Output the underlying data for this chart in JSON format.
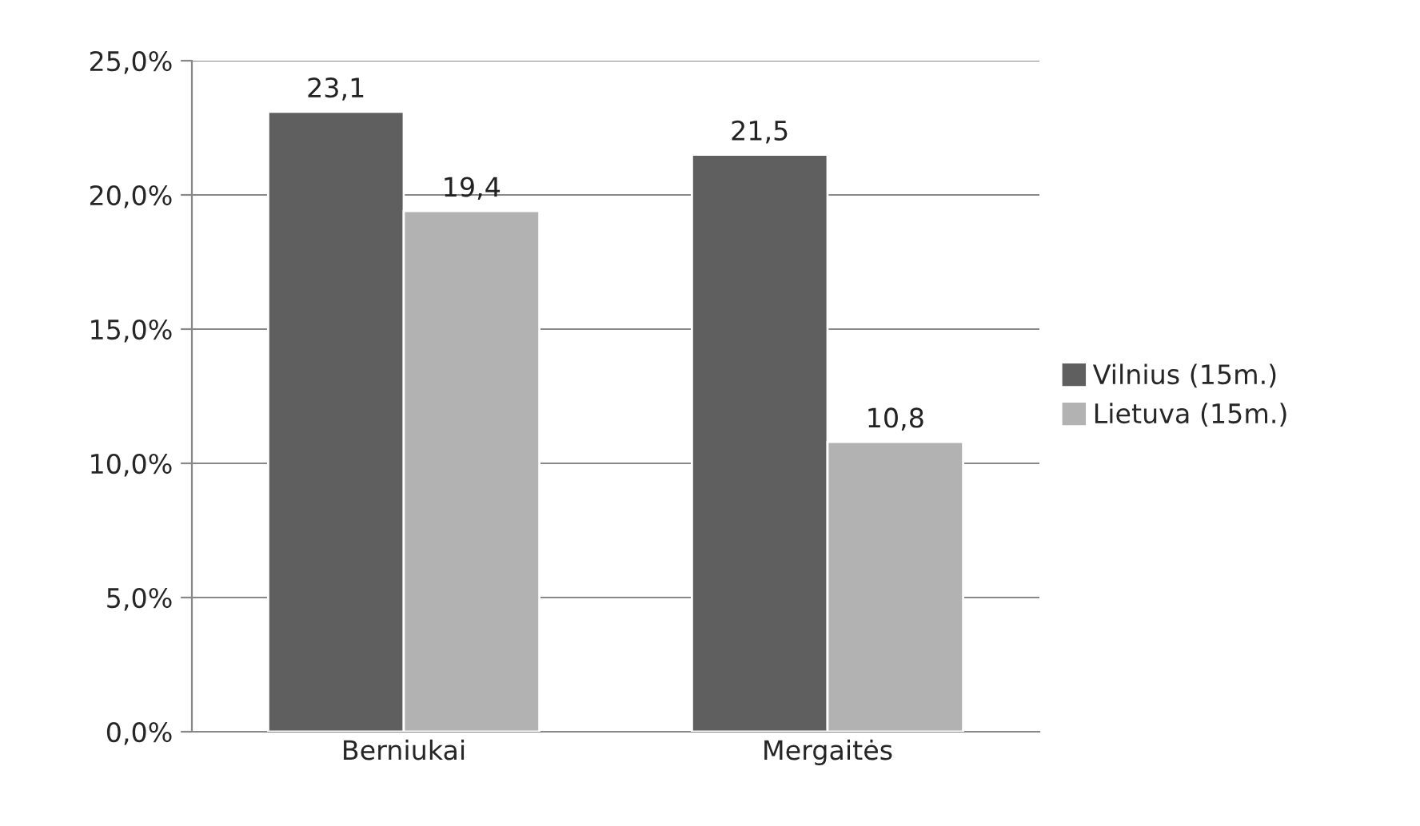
{
  "chart_data": {
    "type": "bar",
    "categories": [
      "Berniukai",
      "Mergaitės"
    ],
    "series": [
      {
        "name": "Vilnius (15m.)",
        "color": "#5f5f5f",
        "values": [
          23.1,
          21.5
        ],
        "value_labels": [
          "23,1",
          "21,5"
        ]
      },
      {
        "name": "Lietuva (15m.)",
        "color": "#b2b2b2",
        "values": [
          19.4,
          10.8
        ],
        "value_labels": [
          "19,4",
          "10,8"
        ]
      }
    ],
    "ylim": [
      0,
      25
    ],
    "yticks": [
      {
        "value": 0,
        "label": "0,0%"
      },
      {
        "value": 5,
        "label": "5,0%"
      },
      {
        "value": 10,
        "label": "10,0%"
      },
      {
        "value": 15,
        "label": "15,0%"
      },
      {
        "value": 20,
        "label": "20,0%"
      },
      {
        "value": 25,
        "label": "25,0%"
      }
    ],
    "grid": "y",
    "legend": "right"
  }
}
